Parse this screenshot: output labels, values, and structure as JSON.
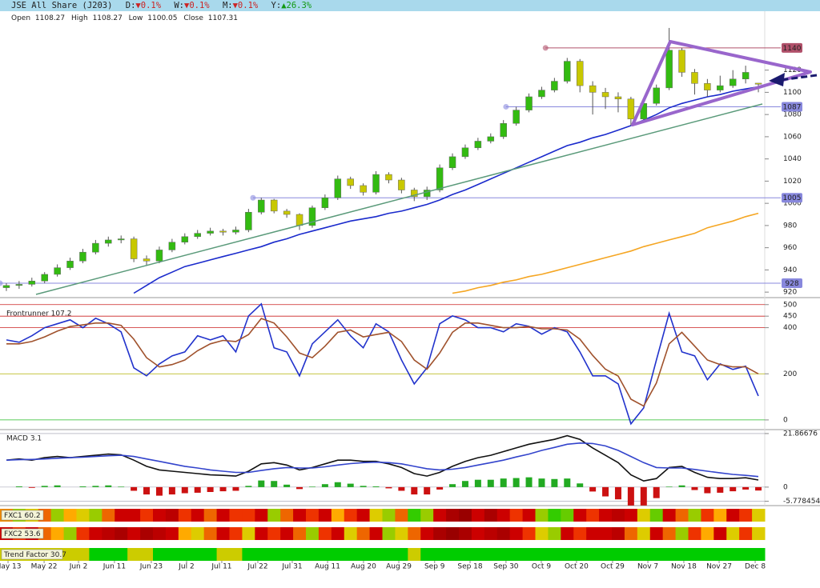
{
  "header": {
    "title": "JSE All Share (J203)",
    "changes": [
      {
        "label": "D:",
        "value": "▼0.1%",
        "color": "#cc2222"
      },
      {
        "label": "W:",
        "value": "▼0.1%",
        "color": "#cc2222"
      },
      {
        "label": "M:",
        "value": "▼0.1%",
        "color": "#cc2222"
      },
      {
        "label": "Y:",
        "value": "▲26.3%",
        "color": "#119911"
      }
    ],
    "ohlc_labels": [
      "Open",
      "High",
      "Low",
      "Close"
    ]
  },
  "chart_data": [
    {
      "type": "candlestick",
      "xlim": [
        -0.5,
        59.5
      ],
      "xticks": [
        {
          "value": 0.13,
          "label": "May 13"
        },
        {
          "value": 2.96,
          "label": "May 22"
        },
        {
          "value": 5.66,
          "label": "Jun 2"
        },
        {
          "value": 8.48,
          "label": "Jun 11"
        },
        {
          "value": 11.37,
          "label": "Jun 23"
        },
        {
          "value": 14.14,
          "label": "Jul 2"
        },
        {
          "value": 16.9,
          "label": "Jul 11"
        },
        {
          "value": 19.73,
          "label": "Jul 22"
        },
        {
          "value": 22.43,
          "label": "Jul 31"
        },
        {
          "value": 25.2,
          "label": "Aug 11"
        },
        {
          "value": 28.02,
          "label": "Aug 20"
        },
        {
          "value": 30.79,
          "label": "Aug 29"
        },
        {
          "value": 33.6,
          "label": "Sep 9"
        },
        {
          "value": 36.38,
          "label": "Sep 18"
        },
        {
          "value": 39.2,
          "label": "Sep 30"
        },
        {
          "value": 41.97,
          "label": "Oct 9"
        },
        {
          "value": 44.73,
          "label": "Oct 20"
        },
        {
          "value": 47.56,
          "label": "Oct 29"
        },
        {
          "value": 50.33,
          "label": "Nov 7"
        },
        {
          "value": 53.15,
          "label": "Nov 18"
        },
        {
          "value": 55.92,
          "label": "Nov 27"
        },
        {
          "value": 58.75,
          "label": "Dec 8"
        }
      ],
      "ylim": [
        916.5,
        1163
      ],
      "yticks": [
        920,
        940,
        960,
        980,
        1000,
        1020,
        1040,
        1060,
        1080,
        1100,
        1120
      ],
      "up_color": "#33bb11",
      "down_color": "#c8c800",
      "candles": {
        "open": [
          924,
          926,
          927,
          930,
          936,
          942,
          948,
          956,
          964,
          967,
          968,
          950,
          948,
          958,
          965,
          970,
          973,
          975,
          974,
          976,
          992,
          1003,
          993,
          990,
          980,
          996,
          1005,
          1022,
          1016,
          1010,
          1026,
          1021,
          1012,
          1006,
          1012,
          1032,
          1042,
          1050,
          1056,
          1060,
          1072,
          1084,
          1096,
          1102,
          1110,
          1128,
          1106,
          1100,
          1096,
          1094,
          1076,
          1090,
          1104,
          1138,
          1118,
          1108,
          1102,
          1106,
          1112,
          1108.27
        ],
        "high": [
          928,
          930,
          933,
          938,
          945,
          951,
          959,
          967,
          970,
          971,
          970,
          953,
          961,
          968,
          973,
          976,
          978,
          977,
          979,
          995,
          1005,
          1004,
          995,
          991,
          998,
          1008,
          1025,
          1024,
          1018,
          1029,
          1028,
          1023,
          1014,
          1015,
          1035,
          1045,
          1053,
          1059,
          1063,
          1075,
          1087,
          1099,
          1105,
          1113,
          1131,
          1130,
          1110,
          1104,
          1100,
          1096,
          1093,
          1107,
          1158,
          1140,
          1121,
          1112,
          1115,
          1120,
          1124,
          1108.27
        ],
        "low": [
          921,
          923,
          925,
          928,
          934,
          940,
          946,
          954,
          961,
          964,
          947,
          944,
          946,
          956,
          963,
          968,
          971,
          971,
          972,
          974,
          990,
          991,
          987,
          976,
          978,
          994,
          1003,
          1013,
          1007,
          1008,
          1018,
          1009,
          1002,
          1003,
          1010,
          1030,
          1040,
          1048,
          1054,
          1058,
          1070,
          1082,
          1094,
          1100,
          1108,
          1100,
          1080,
          1085,
          1082,
          1070,
          1074,
          1088,
          1102,
          1114,
          1098,
          1096,
          1100,
          1104,
          1108,
          1100.05
        ],
        "close": [
          926,
          927,
          930,
          936,
          942,
          948,
          956,
          964,
          967,
          968,
          950,
          948,
          958,
          965,
          970,
          973,
          975,
          974,
          976,
          992,
          1003,
          993,
          990,
          980,
          996,
          1005,
          1022,
          1016,
          1010,
          1026,
          1021,
          1012,
          1006,
          1012,
          1032,
          1042,
          1050,
          1056,
          1060,
          1072,
          1084,
          1096,
          1102,
          1110,
          1128,
          1106,
          1100,
          1096,
          1094,
          1076,
          1090,
          1104,
          1138,
          1118,
          1108,
          1102,
          1106,
          1112,
          1118,
          1107.31
        ]
      },
      "series": [
        {
          "color": "#1a2acc",
          "values": [
            null,
            null,
            null,
            null,
            null,
            null,
            null,
            null,
            null,
            null,
            919,
            926,
            933,
            938,
            943,
            946,
            949,
            952,
            955,
            958,
            961,
            965,
            968,
            972,
            975,
            978,
            981,
            984,
            986,
            988,
            991,
            993,
            996,
            999,
            1003,
            1008,
            1012,
            1017,
            1022,
            1027,
            1032,
            1037,
            1042,
            1047,
            1052,
            1055,
            1059,
            1062,
            1066,
            1070,
            1075,
            1080,
            1086,
            1090,
            1093,
            1096,
            1098,
            1101,
            1103,
            1105
          ]
        },
        {
          "color": "#f5a623",
          "values": [
            null,
            null,
            null,
            null,
            null,
            null,
            null,
            null,
            null,
            null,
            null,
            null,
            null,
            null,
            null,
            null,
            null,
            null,
            null,
            null,
            null,
            null,
            null,
            null,
            null,
            null,
            null,
            null,
            null,
            null,
            null,
            null,
            null,
            null,
            null,
            919,
            921,
            924,
            926,
            929,
            931,
            934,
            936,
            939,
            942,
            945,
            948,
            951,
            954,
            957,
            961,
            964,
            967,
            970,
            973,
            978,
            981,
            984,
            988,
            991
          ]
        }
      ],
      "levels": [
        {
          "value": 1140,
          "from": 42.3,
          "color": "#b0506a",
          "text_color": "#ffffff"
        },
        {
          "value": 1087,
          "from": 39.2,
          "color": "#8888dd",
          "text_color": "#1a1a99"
        },
        {
          "value": 1005,
          "from": 19.35,
          "color": "#8888dd",
          "text_color": "#1a1a99"
        },
        {
          "value": 928,
          "from": -0.5,
          "color": "#8888dd",
          "text_color": "#1a1a99"
        }
      ]
    },
    {
      "type": "line",
      "title": "Frontrunner 107.2",
      "ylim": [
        -35,
        520
      ],
      "yticks": [
        0,
        200,
        400,
        450,
        500
      ],
      "ref_colors": [
        "#22bb22",
        "#b0b000",
        "#cc2222",
        "#cc2222",
        "#cc2222"
      ],
      "series": [
        {
          "color": "#2233cc",
          "values": [
            347,
            337,
            365,
            400,
            417,
            434,
            400,
            441,
            417,
            382,
            226,
            191,
            243,
            278,
            295,
            365,
            347,
            365,
            295,
            451,
            503,
            313,
            295,
            191,
            330,
            382,
            434,
            365,
            313,
            417,
            382,
            260,
            156,
            226,
            417,
            451,
            434,
            400,
            400,
            382,
            417,
            406,
            372,
            400,
            382,
            295,
            191,
            191,
            156,
            -17,
            52,
            260,
            462,
            295,
            278,
            174,
            243,
            219,
            233,
            104
          ]
        },
        {
          "color": "#a0522d",
          "values": [
            330,
            330,
            340,
            360,
            385,
            405,
            412,
            420,
            420,
            410,
            350,
            270,
            230,
            240,
            260,
            300,
            330,
            345,
            340,
            370,
            440,
            420,
            360,
            290,
            270,
            320,
            380,
            390,
            360,
            370,
            380,
            340,
            260,
            220,
            290,
            380,
            420,
            420,
            410,
            400,
            400,
            405,
            395,
            395,
            390,
            350,
            280,
            220,
            190,
            90,
            60,
            160,
            330,
            380,
            320,
            260,
            240,
            230,
            230,
            200
          ]
        }
      ]
    },
    {
      "type": "macd",
      "title": "MACD 3.1",
      "ylim": [
        -6.9,
        22.5
      ],
      "yticks": [
        -5.778454,
        0,
        21.86676
      ],
      "series": [
        {
          "color": "#111111",
          "values": [
            11,
            11.5,
            11,
            12,
            12.5,
            12,
            12.5,
            13,
            13.5,
            13.2,
            11,
            8.5,
            7,
            6.5,
            6,
            5.5,
            5,
            4.8,
            4.5,
            6.5,
            9.5,
            10,
            9,
            7,
            8,
            9.5,
            11,
            11,
            10.5,
            10.5,
            9.5,
            8,
            5.5,
            4.5,
            6,
            8.5,
            10.5,
            12,
            13,
            14.5,
            16,
            17.5,
            18.5,
            19.5,
            21,
            19.5,
            16,
            13,
            10,
            5,
            2.5,
            3.5,
            8,
            8.5,
            6,
            4,
            3.5,
            3.5,
            3.8,
            2.9
          ]
        },
        {
          "color": "#3344cc",
          "values": [
            11,
            11.2,
            11.3,
            11.5,
            11.8,
            12,
            12.2,
            12.5,
            12.8,
            13,
            12.5,
            11.5,
            10.5,
            9.5,
            8.5,
            7.8,
            7,
            6.5,
            6,
            6,
            6.8,
            7.5,
            8,
            7.8,
            7.8,
            8.3,
            9,
            9.6,
            10,
            10.2,
            10,
            9.5,
            8.5,
            7.5,
            7,
            7.3,
            8,
            9,
            10,
            11,
            12.3,
            13.5,
            15,
            16.2,
            17.5,
            18,
            17.8,
            16.8,
            15,
            12.5,
            10,
            8,
            7.8,
            7.8,
            7.2,
            6.5,
            5.8,
            5.2,
            4.8,
            4.3
          ]
        }
      ],
      "histogram": {
        "up_color": "#22aa22",
        "down_color": "#cc1111",
        "values": [
          0,
          0.3,
          -0.3,
          0.5,
          0.7,
          0,
          0.3,
          0.5,
          0.7,
          0.2,
          -1.5,
          -3,
          -3.5,
          -3,
          -2.5,
          -2.3,
          -2,
          -1.7,
          -1.5,
          0.5,
          2.7,
          2.5,
          1,
          -0.8,
          0.2,
          1.2,
          2,
          1.4,
          0.5,
          0.3,
          -0.5,
          -1.5,
          -3,
          -3,
          -1,
          1.2,
          2.5,
          3,
          3,
          3.5,
          3.7,
          4,
          3.5,
          3.3,
          3.5,
          1.5,
          -1.8,
          -3.8,
          -5,
          -7.5,
          -7.5,
          -4.5,
          0.2,
          0.7,
          -1.2,
          -2.5,
          -2.3,
          -1.7,
          -1,
          -1.4
        ]
      }
    },
    {
      "type": "strips",
      "strips": [
        {
          "label": "FXC1 60.2",
          "colors": [
            "#e80",
            "#9c0",
            "#dc0",
            "#e60",
            "#9c0",
            "#fa0",
            "#dc0",
            "#9c0",
            "#e60",
            "#c00",
            "#c00",
            "#e30",
            "#c00",
            "#b00",
            "#e30",
            "#c00",
            "#e60",
            "#c00",
            "#e30",
            "#e30",
            "#c00",
            "#9c0",
            "#e60",
            "#c00",
            "#e30",
            "#c00",
            "#fa0",
            "#e30",
            "#c00",
            "#dc0",
            "#9c0",
            "#e60",
            "#3c0",
            "#9c0",
            "#c00",
            "#a00",
            "#900",
            "#c00",
            "#a00",
            "#c00",
            "#e30",
            "#c00",
            "#9c0",
            "#3c0",
            "#6c0",
            "#c00",
            "#e30",
            "#c00",
            "#b00",
            "#c00",
            "#dc0",
            "#6c0",
            "#c00",
            "#e60",
            "#9c0",
            "#e30",
            "#fa0",
            "#c00",
            "#e30",
            "#dc0"
          ]
        },
        {
          "label": "FXC2 53.6",
          "colors": [
            "#c00",
            "#e30",
            "#c00",
            "#e60",
            "#fa0",
            "#9c0",
            "#e30",
            "#c00",
            "#b00",
            "#a00",
            "#c00",
            "#a00",
            "#b00",
            "#c00",
            "#fa0",
            "#dc0",
            "#e60",
            "#c00",
            "#e30",
            "#dc0",
            "#c00",
            "#e30",
            "#c00",
            "#e60",
            "#9c0",
            "#e30",
            "#c00",
            "#dc0",
            "#e60",
            "#c00",
            "#9c0",
            "#dc0",
            "#e60",
            "#c00",
            "#a00",
            "#900",
            "#a00",
            "#c00",
            "#b00",
            "#a00",
            "#c00",
            "#e30",
            "#dc0",
            "#9c0",
            "#c00",
            "#e30",
            "#c00",
            "#c00",
            "#b00",
            "#e60",
            "#dc0",
            "#c00",
            "#e60",
            "#9c0",
            "#e30",
            "#fa0",
            "#c00",
            "#dc0",
            "#e30",
            "#dc0"
          ]
        },
        {
          "label": "Trend Factor 30.7",
          "colors": [
            "#cc0",
            "#cc0",
            "#cc0",
            "#cc0",
            "#cc0",
            "#cc0",
            "#cc0",
            "#0c0",
            "#0c0",
            "#0c0",
            "#cc0",
            "#cc0",
            "#0c0",
            "#0c0",
            "#0c0",
            "#0c0",
            "#0c0",
            "#cc0",
            "#cc0",
            "#0c0",
            "#0c0",
            "#0c0",
            "#0c0",
            "#0c0",
            "#0c0",
            "#0c0",
            "#0c0",
            "#0c0",
            "#0c0",
            "#0c0",
            "#0c0",
            "#0c0",
            "#cc0",
            "#0c0",
            "#0c0",
            "#0c0",
            "#0c0",
            "#0c0",
            "#0c0",
            "#0c0",
            "#0c0",
            "#0c0",
            "#0c0",
            "#0c0",
            "#0c0",
            "#0c0",
            "#0c0",
            "#0c0",
            "#0c0",
            "#0c0",
            "#0c0",
            "#0c0",
            "#0c0",
            "#0c0",
            "#0c0",
            "#0c0",
            "#0c0",
            "#0c0",
            "#0c0",
            "#0c0"
          ]
        }
      ]
    }
  ]
}
